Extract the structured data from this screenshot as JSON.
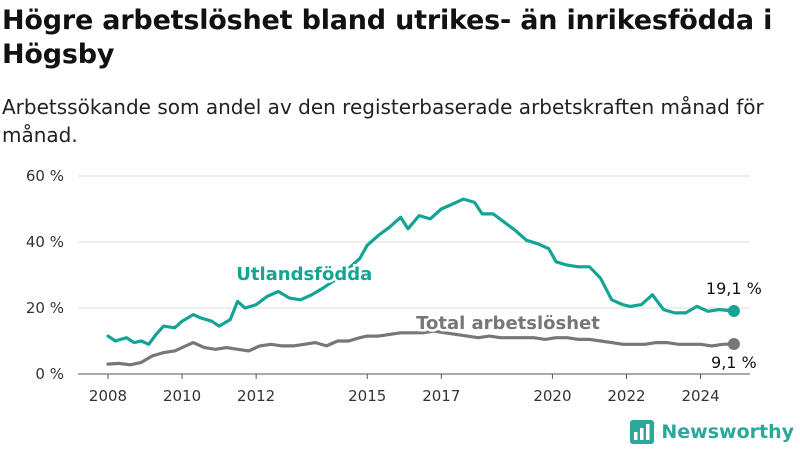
{
  "title": "Högre arbetslöshet bland utrikes- än inrikesfödda i Högsby",
  "subtitle": "Arbetssökande som andel av den registerbaserade arbetskraften månad för månad.",
  "brand": {
    "name": "Newsworthy",
    "icon": "newsworthy-bar-chart-icon",
    "color": "#2aa89a"
  },
  "chart_data": {
    "type": "line",
    "title": "Högre arbetslöshet bland utrikes- än inrikesfödda i Högsby",
    "xlabel": "",
    "ylabel": "",
    "xlim": [
      2008,
      2025.2
    ],
    "ylim": [
      0,
      60
    ],
    "grid": true,
    "legend": "inline labels",
    "y_ticks": [
      "0 %",
      "20 %",
      "40 %",
      "60 %"
    ],
    "x_ticks": [
      "2008",
      "2010",
      "2012",
      "2015",
      "2017",
      "2020",
      "2022",
      "2024"
    ],
    "series": [
      {
        "name": "Utlandsfödda",
        "color": "#14a494",
        "end_label": "19,1 %",
        "points": [
          [
            2008.0,
            11.5
          ],
          [
            2008.2,
            10.0
          ],
          [
            2008.5,
            11.0
          ],
          [
            2008.7,
            9.5
          ],
          [
            2008.9,
            10.0
          ],
          [
            2009.1,
            9.0
          ],
          [
            2009.3,
            12.0
          ],
          [
            2009.5,
            14.5
          ],
          [
            2009.8,
            14.0
          ],
          [
            2010.0,
            16.0
          ],
          [
            2010.3,
            18.0
          ],
          [
            2010.5,
            17.0
          ],
          [
            2010.8,
            16.0
          ],
          [
            2011.0,
            14.5
          ],
          [
            2011.3,
            16.5
          ],
          [
            2011.5,
            22.0
          ],
          [
            2011.7,
            20.0
          ],
          [
            2012.0,
            21.0
          ],
          [
            2012.3,
            23.5
          ],
          [
            2012.6,
            25.0
          ],
          [
            2012.9,
            23.0
          ],
          [
            2013.2,
            22.5
          ],
          [
            2013.5,
            24.0
          ],
          [
            2013.8,
            26.0
          ],
          [
            2014.2,
            29.0
          ],
          [
            2014.5,
            32.0
          ],
          [
            2014.8,
            35.0
          ],
          [
            2015.0,
            39.0
          ],
          [
            2015.3,
            42.0
          ],
          [
            2015.6,
            44.5
          ],
          [
            2015.9,
            47.5
          ],
          [
            2016.1,
            44.0
          ],
          [
            2016.4,
            48.0
          ],
          [
            2016.7,
            47.0
          ],
          [
            2017.0,
            50.0
          ],
          [
            2017.3,
            51.5
          ],
          [
            2017.6,
            53.0
          ],
          [
            2017.9,
            52.0
          ],
          [
            2018.1,
            48.5
          ],
          [
            2018.4,
            48.5
          ],
          [
            2018.7,
            46.0
          ],
          [
            2019.0,
            43.5
          ],
          [
            2019.3,
            40.5
          ],
          [
            2019.6,
            39.5
          ],
          [
            2019.9,
            38.0
          ],
          [
            2020.1,
            34.0
          ],
          [
            2020.4,
            33.0
          ],
          [
            2020.7,
            32.5
          ],
          [
            2021.0,
            32.5
          ],
          [
            2021.3,
            29.0
          ],
          [
            2021.6,
            22.5
          ],
          [
            2021.9,
            21.0
          ],
          [
            2022.1,
            20.5
          ],
          [
            2022.4,
            21.0
          ],
          [
            2022.7,
            24.0
          ],
          [
            2023.0,
            19.5
          ],
          [
            2023.3,
            18.5
          ],
          [
            2023.6,
            18.5
          ],
          [
            2023.9,
            20.5
          ],
          [
            2024.2,
            19.0
          ],
          [
            2024.5,
            19.5
          ],
          [
            2024.9,
            19.1
          ]
        ]
      },
      {
        "name": "Total arbetslöshet",
        "color": "#777777",
        "end_label": "9,1 %",
        "points": [
          [
            2008.0,
            3.0
          ],
          [
            2008.3,
            3.2
          ],
          [
            2008.6,
            2.8
          ],
          [
            2008.9,
            3.5
          ],
          [
            2009.2,
            5.5
          ],
          [
            2009.5,
            6.5
          ],
          [
            2009.8,
            7.0
          ],
          [
            2010.0,
            8.0
          ],
          [
            2010.3,
            9.5
          ],
          [
            2010.6,
            8.0
          ],
          [
            2010.9,
            7.5
          ],
          [
            2011.2,
            8.0
          ],
          [
            2011.5,
            7.5
          ],
          [
            2011.8,
            7.0
          ],
          [
            2012.1,
            8.5
          ],
          [
            2012.4,
            9.0
          ],
          [
            2012.7,
            8.5
          ],
          [
            2013.0,
            8.5
          ],
          [
            2013.3,
            9.0
          ],
          [
            2013.6,
            9.5
          ],
          [
            2013.9,
            8.5
          ],
          [
            2014.2,
            10.0
          ],
          [
            2014.5,
            10.0
          ],
          [
            2014.8,
            11.0
          ],
          [
            2015.0,
            11.5
          ],
          [
            2015.3,
            11.5
          ],
          [
            2015.6,
            12.0
          ],
          [
            2015.9,
            12.5
          ],
          [
            2016.2,
            12.5
          ],
          [
            2016.5,
            12.5
          ],
          [
            2016.8,
            13.0
          ],
          [
            2017.1,
            12.5
          ],
          [
            2017.4,
            12.0
          ],
          [
            2017.7,
            11.5
          ],
          [
            2018.0,
            11.0
          ],
          [
            2018.3,
            11.5
          ],
          [
            2018.6,
            11.0
          ],
          [
            2018.9,
            11.0
          ],
          [
            2019.2,
            11.0
          ],
          [
            2019.5,
            11.0
          ],
          [
            2019.8,
            10.5
          ],
          [
            2020.1,
            11.0
          ],
          [
            2020.4,
            11.0
          ],
          [
            2020.7,
            10.5
          ],
          [
            2021.0,
            10.5
          ],
          [
            2021.3,
            10.0
          ],
          [
            2021.6,
            9.5
          ],
          [
            2021.9,
            9.0
          ],
          [
            2022.2,
            9.0
          ],
          [
            2022.5,
            9.0
          ],
          [
            2022.8,
            9.5
          ],
          [
            2023.1,
            9.5
          ],
          [
            2023.4,
            9.0
          ],
          [
            2023.7,
            9.0
          ],
          [
            2024.0,
            9.0
          ],
          [
            2024.3,
            8.5
          ],
          [
            2024.6,
            9.0
          ],
          [
            2024.9,
            9.1
          ]
        ]
      }
    ],
    "line_labels": [
      {
        "series": "Utlandsfödda",
        "text": "Utlandsfödda",
        "at": [
          2013.3,
          28.5
        ]
      },
      {
        "series": "Total arbetslöshet",
        "text": "Total arbetslöshet",
        "at": [
          2018.8,
          13.6
        ]
      }
    ]
  }
}
